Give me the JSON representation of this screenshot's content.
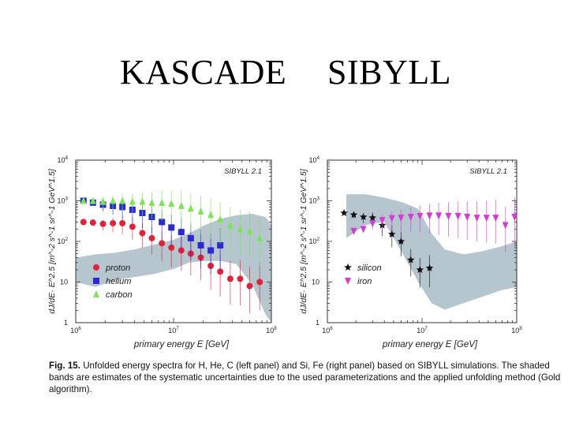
{
  "slide": {
    "title_left": "KASCADE",
    "title_right": "SIBYLL"
  },
  "caption": {
    "label": "Fig. 15.",
    "text": "Unfolded energy spectra for H, He, C (left panel) and Si, Fe (right panel) based on SIBYLL simulations. The shaded bands are estimates of the systematic uncertainties due to the used parameterizations and the applied unfolding method (Gold algorithm)."
  },
  "colors": {
    "proton": "#e0233a",
    "helium": "#2a2ad0",
    "carbon": "#7fe35a",
    "silicon": "#111111",
    "iron": "#d639d6",
    "band": "#a9bcc6"
  },
  "chart_data": [
    {
      "type": "scatter",
      "title": "SIBYLL 2.1",
      "xlabel": "primary energy E [GeV]",
      "ylabel": "dJ/dE· E^2.5 [m^-2 s^-1 sr^-1 GeV^1.5]",
      "xscale": "log",
      "yscale": "log",
      "xlim": [
        1000000,
        100000000
      ],
      "ylim": [
        1,
        10000
      ],
      "x_ticks": [
        "10^6",
        "10^7",
        "10^8"
      ],
      "y_ticks": [
        "1",
        "10",
        "10^2",
        "10^3",
        "10^4"
      ],
      "legend": "bottom-left",
      "series": [
        {
          "name": "proton",
          "marker": "circle",
          "color": "#e0233a",
          "x": [
            1200000.0,
            1500000.0,
            1900000.0,
            2400000.0,
            3000000.0,
            3800000.0,
            4800000.0,
            6000000.0,
            7600000.0,
            9500000.0,
            12000000.0,
            15000000.0,
            19000000.0,
            24000000.0,
            30000000.0,
            38000000.0,
            48000000.0,
            60000000.0,
            76000000.0
          ],
          "y": [
            300,
            290,
            270,
            280,
            280,
            230,
            160,
            120,
            90,
            70,
            60,
            50,
            40,
            25,
            18,
            12,
            12,
            8,
            10
          ]
        },
        {
          "name": "helium",
          "marker": "square",
          "color": "#2a2ad0",
          "x": [
            1200000.0,
            1500000.0,
            1900000.0,
            2400000.0,
            3000000.0,
            3800000.0,
            4800000.0,
            6000000.0,
            7600000.0,
            9500000.0,
            12000000.0,
            15000000.0,
            19000000.0,
            24000000.0,
            30000000.0
          ],
          "y": [
            1000,
            900,
            800,
            750,
            700,
            600,
            500,
            400,
            300,
            220,
            170,
            120,
            80,
            60,
            80
          ]
        },
        {
          "name": "carbon",
          "marker": "triangle-up",
          "color": "#7fe35a",
          "x": [
            1200000.0,
            1500000.0,
            1900000.0,
            2400000.0,
            3000000.0,
            3800000.0,
            4800000.0,
            6000000.0,
            7600000.0,
            9500000.0,
            12000000.0,
            15000000.0,
            19000000.0,
            24000000.0,
            30000000.0,
            38000000.0,
            48000000.0,
            60000000.0,
            76000000.0
          ],
          "y": [
            1000,
            1000,
            950,
            1000,
            1000,
            950,
            950,
            900,
            900,
            850,
            750,
            650,
            550,
            450,
            350,
            250,
            200,
            180,
            120
          ]
        }
      ]
    },
    {
      "type": "scatter",
      "title": "SIBYLL 2.1",
      "xlabel": "primary energy E [GeV]",
      "ylabel": "dJ/dE· E^2.5 [m^-2 s^-1 sr^-1 GeV^1.5]",
      "xscale": "log",
      "yscale": "log",
      "xlim": [
        1000000,
        100000000
      ],
      "ylim": [
        1,
        10000
      ],
      "x_ticks": [
        "10^6",
        "10^7",
        "10^8"
      ],
      "y_ticks": [
        "1",
        "10",
        "10^2",
        "10^3",
        "10^4"
      ],
      "legend": "bottom-left",
      "series": [
        {
          "name": "silicon",
          "marker": "star",
          "color": "#111111",
          "x": [
            1500000.0,
            1900000.0,
            2400000.0,
            3000000.0,
            3800000.0,
            4800000.0,
            6000000.0,
            7600000.0,
            9500000.0,
            12000000.0
          ],
          "y": [
            500,
            450,
            400,
            380,
            250,
            150,
            100,
            35,
            20,
            22
          ]
        },
        {
          "name": "iron",
          "marker": "triangle-down",
          "color": "#d639d6",
          "x": [
            1900000.0,
            2400000.0,
            3000000.0,
            3800000.0,
            4800000.0,
            6000000.0,
            7600000.0,
            9500000.0,
            12000000.0,
            15000000.0,
            19000000.0,
            24000000.0,
            30000000.0,
            38000000.0,
            48000000.0,
            60000000.0,
            76000000.0,
            95000000.0
          ],
          "y": [
            180,
            200,
            280,
            330,
            370,
            380,
            400,
            420,
            430,
            430,
            420,
            420,
            400,
            380,
            380,
            380,
            250,
            400
          ]
        }
      ]
    }
  ]
}
